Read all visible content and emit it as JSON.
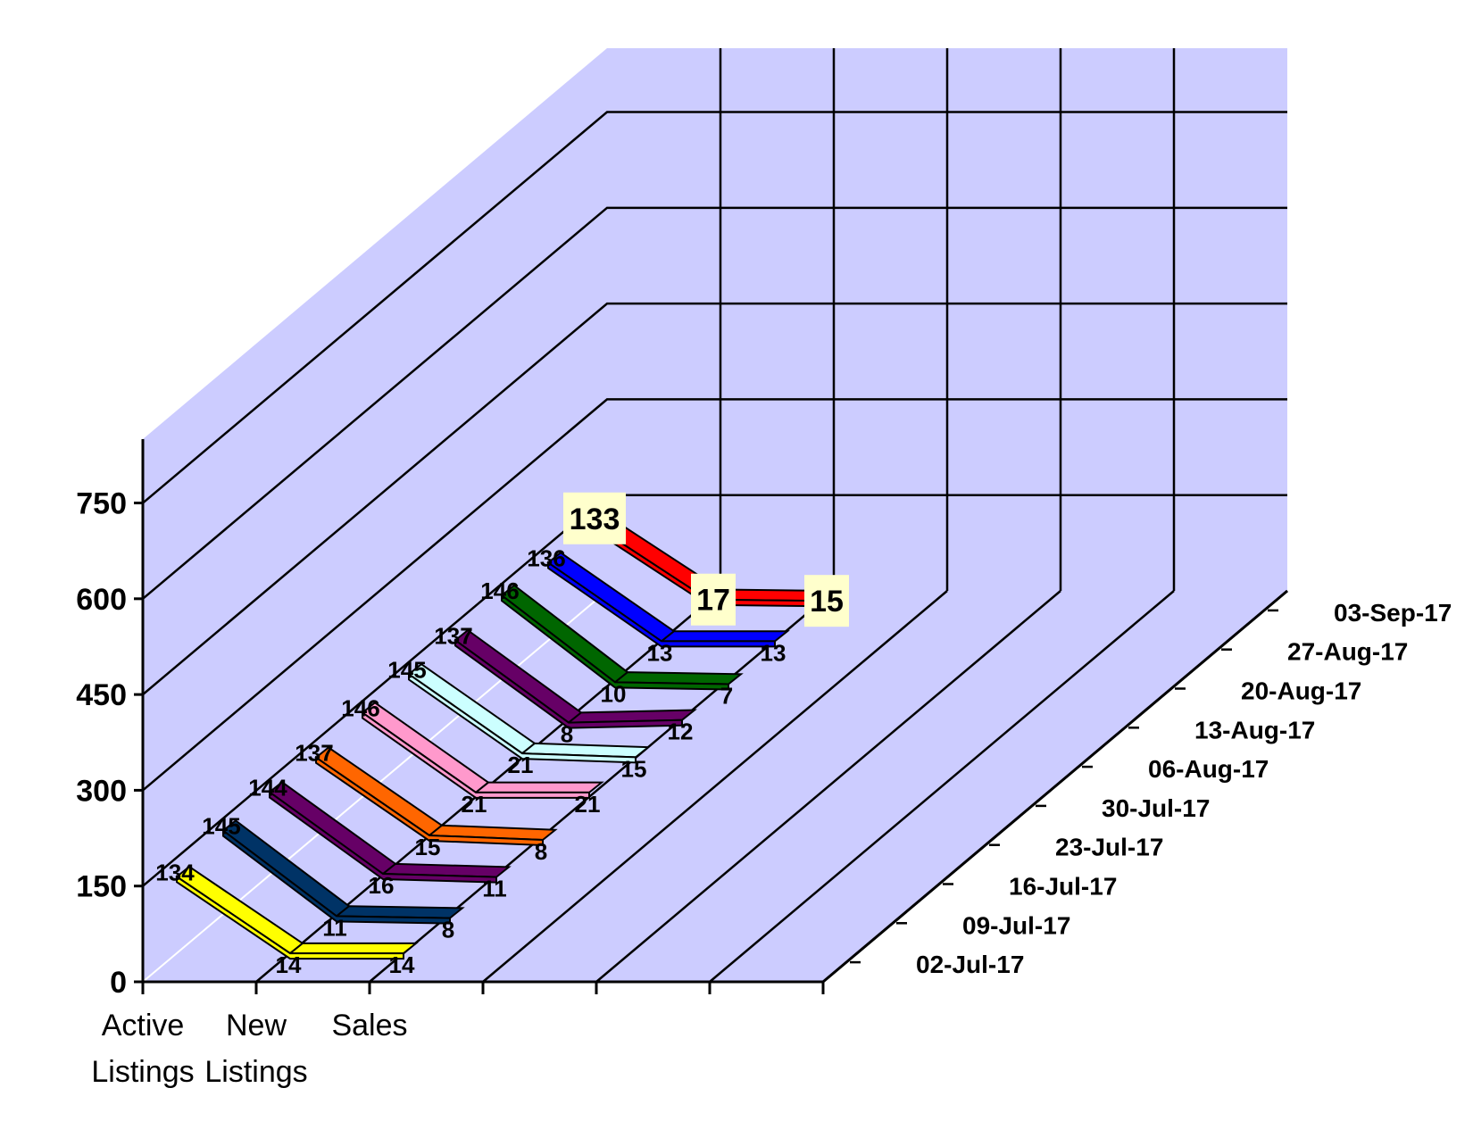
{
  "chart_data": {
    "type": "line",
    "title": "",
    "xlabel": "",
    "ylabel": "",
    "ylim": [
      0,
      850
    ],
    "yticks": [
      0,
      150,
      300,
      450,
      600,
      750
    ],
    "categories": [
      "Active Listings",
      "New Listings",
      "Sales"
    ],
    "category_lines": [
      [
        "Active",
        "Listings"
      ],
      [
        "New",
        "Listings"
      ],
      [
        "Sales",
        ""
      ]
    ],
    "depth_labels": [
      "02-Jul-17",
      "09-Jul-17",
      "16-Jul-17",
      "23-Jul-17",
      "30-Jul-17",
      "06-Aug-17",
      "13-Aug-17",
      "20-Aug-17",
      "27-Aug-17",
      "03-Sep-17"
    ],
    "series": [
      {
        "name": "02-Jul-17",
        "values": [
          134,
          14,
          14
        ],
        "color": "#ffff00"
      },
      {
        "name": "09-Jul-17",
        "values": [
          145,
          11,
          8
        ],
        "color": "#003366"
      },
      {
        "name": "16-Jul-17",
        "values": [
          144,
          16,
          11
        ],
        "color": "#660066"
      },
      {
        "name": "23-Jul-17",
        "values": [
          137,
          15,
          8
        ],
        "color": "#ff6600"
      },
      {
        "name": "30-Jul-17",
        "values": [
          146,
          21,
          21
        ],
        "color": "#ff99cc"
      },
      {
        "name": "06-Aug-17",
        "values": [
          145,
          21,
          15
        ],
        "color": "#ccffff"
      },
      {
        "name": "13-Aug-17",
        "values": [
          137,
          8,
          12
        ],
        "color": "#660066"
      },
      {
        "name": "20-Aug-17",
        "values": [
          146,
          10,
          7
        ],
        "color": "#006600"
      },
      {
        "name": "27-Aug-17",
        "values": [
          136,
          13,
          13
        ],
        "color": "#0000ff"
      },
      {
        "name": "03-Sep-17",
        "values": [
          133,
          17,
          15
        ],
        "color": "#ff0000"
      }
    ],
    "highlighted_series": "03-Sep-17",
    "colors": {
      "wall": "#ccccff",
      "label_box": "#ffffcc",
      "gridline": "#000000"
    },
    "grid": true
  }
}
